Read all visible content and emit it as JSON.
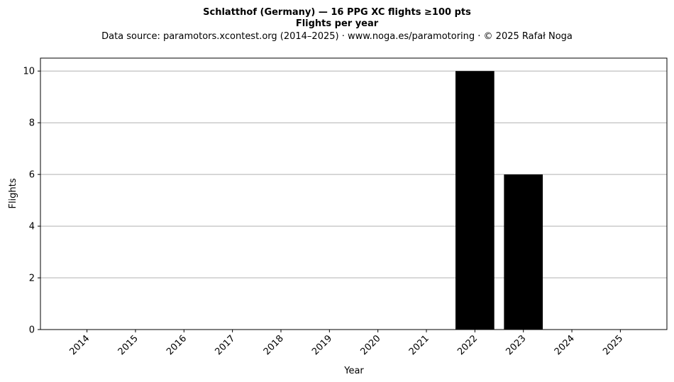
{
  "chart_data": {
    "type": "bar",
    "title": "Schlatthof (Germany)  —  16 PPG XC flights ≥100 pts",
    "title2": "Flights per year",
    "subtitle": "Data source: paramotors.xcontest.org (2014–2025)  ·  www.noga.es/paramotoring  ·  © 2025 Rafał Noga",
    "xlabel": "Year",
    "ylabel": "Flights",
    "categories": [
      "2014",
      "2015",
      "2016",
      "2017",
      "2018",
      "2019",
      "2020",
      "2021",
      "2022",
      "2023",
      "2024",
      "2025"
    ],
    "values": [
      0,
      0,
      0,
      0,
      0,
      0,
      0,
      0,
      10,
      6,
      0,
      0
    ],
    "ylim": [
      0,
      10.5
    ],
    "yticks": [
      0,
      2,
      4,
      6,
      8,
      10
    ],
    "grid": "y",
    "colors": {
      "bar": "#000000",
      "grid": "#b0b0b0",
      "axes": "#000000"
    }
  }
}
